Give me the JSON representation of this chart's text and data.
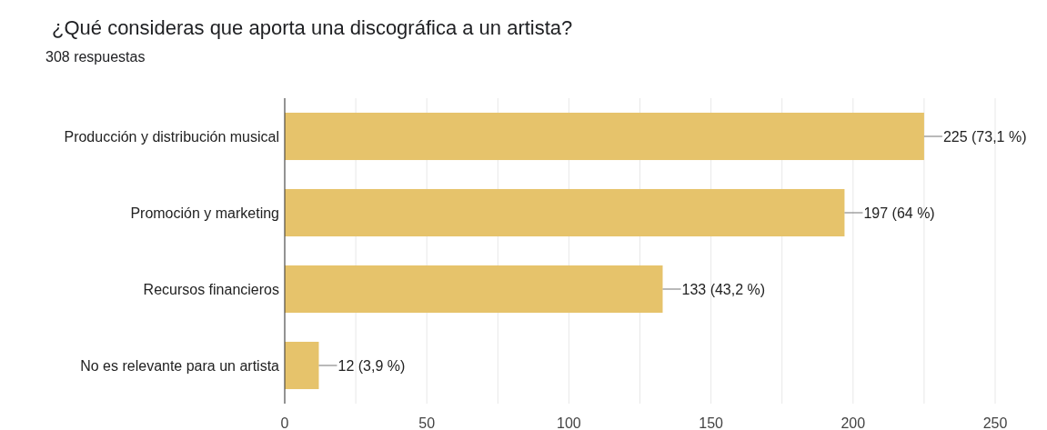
{
  "chart_data": {
    "type": "bar",
    "orientation": "horizontal",
    "title": "¿Qué consideras que aporta una discográfica a un artista?",
    "subtitle": "308 respuestas",
    "categories": [
      "Producción y distribución musical",
      "Promoción y marketing",
      "Recursos financieros",
      "No es relevante para un artista"
    ],
    "values": [
      225,
      197,
      133,
      12
    ],
    "value_labels": [
      "225 (73,1 %)",
      "197 (64 %)",
      "133 (43,2 %)",
      "12 (3,9 %)"
    ],
    "color": "#e6c36b",
    "xlim": [
      0,
      250
    ],
    "xticks": [
      0,
      {
        "value": 25,
        "label": null
      },
      50,
      {
        "value": 75,
        "label": null
      },
      100,
      {
        "value": 125,
        "label": null
      },
      150,
      {
        "value": 175,
        "label": null
      },
      200,
      {
        "value": 225,
        "label": null
      },
      250
    ],
    "grid": "x"
  }
}
